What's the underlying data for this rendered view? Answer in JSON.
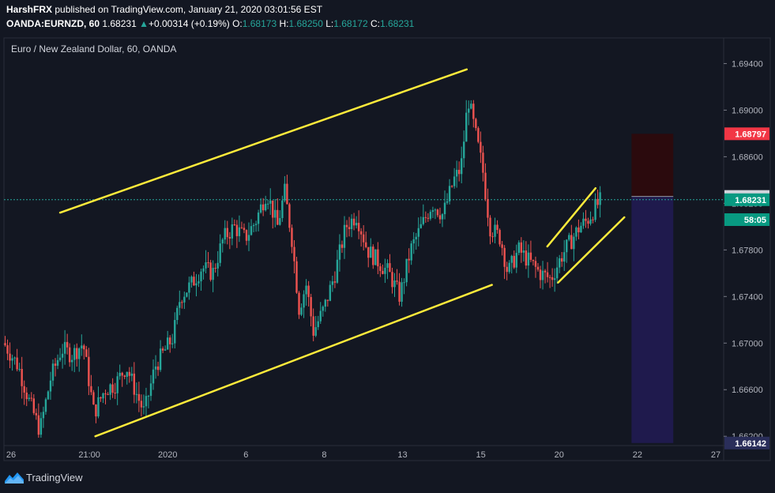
{
  "header": {
    "author": "HarshFRX",
    "published_text": " published on TradingView.com, January 21, 2020 03:01:56 EST",
    "symbol": "OANDA:EURNZD, 60",
    "last": "1.68231",
    "change_arrow": "▲",
    "change": "+0.00314 (+0.19%)",
    "o_label": "O:",
    "o_value": "1.68173",
    "h_label": "H:",
    "h_value": "1.68250",
    "l_label": "L:",
    "l_value": "1.68172",
    "c_label": "C:",
    "c_value": "1.68231"
  },
  "chart_data": {
    "type": "candlestick",
    "title": "Euro / New Zealand Dollar, 60, OANDA",
    "ylim": [
      1.6612,
      1.6962
    ],
    "y_ticks": [
      "1.69400",
      "1.69000",
      "1.68600",
      "1.68200",
      "1.67800",
      "1.67400",
      "1.67000",
      "1.66600",
      "1.66200"
    ],
    "x_ticks": [
      "26",
      "21:00",
      "2020",
      "6",
      "8",
      "13",
      "15",
      "20",
      "22",
      "27"
    ],
    "current_price_line": 1.68231,
    "price_labels": [
      {
        "text": "1.68797",
        "value": 1.68797,
        "color": "#f23645"
      },
      {
        "text": "1.68259",
        "value": 1.68259,
        "color": "#d1d4dc"
      },
      {
        "text": "1.68231",
        "value": 1.68231,
        "color": "#089981"
      },
      {
        "text": "58:05",
        "value": 1.6806,
        "color": "#089981"
      },
      {
        "text": "1.66142",
        "value": 1.66142,
        "color": "#2a2e5a"
      }
    ],
    "colors": {
      "up": "#26a69a",
      "down": "#ef5350",
      "trendline": "#ffeb3b",
      "stop_zone": "#2b0a0d",
      "target_zone": "#1f1a4d"
    },
    "path": [
      {
        "x": 0.0,
        "y": 1.67
      },
      {
        "x": 0.02,
        "y": 1.668
      },
      {
        "x": 0.035,
        "y": 1.665
      },
      {
        "x": 0.05,
        "y": 1.6625
      },
      {
        "x": 0.065,
        "y": 1.667
      },
      {
        "x": 0.08,
        "y": 1.6695
      },
      {
        "x": 0.095,
        "y": 1.669
      },
      {
        "x": 0.11,
        "y": 1.67
      },
      {
        "x": 0.125,
        "y": 1.664
      },
      {
        "x": 0.14,
        "y": 1.666
      },
      {
        "x": 0.155,
        "y": 1.6665
      },
      {
        "x": 0.17,
        "y": 1.668
      },
      {
        "x": 0.185,
        "y": 1.6655
      },
      {
        "x": 0.195,
        "y": 1.664
      },
      {
        "x": 0.21,
        "y": 1.668
      },
      {
        "x": 0.22,
        "y": 1.669
      },
      {
        "x": 0.235,
        "y": 1.6705
      },
      {
        "x": 0.245,
        "y": 1.674
      },
      {
        "x": 0.26,
        "y": 1.675
      },
      {
        "x": 0.275,
        "y": 1.6765
      },
      {
        "x": 0.29,
        "y": 1.676
      },
      {
        "x": 0.305,
        "y": 1.679
      },
      {
        "x": 0.32,
        "y": 1.68
      },
      {
        "x": 0.335,
        "y": 1.679
      },
      {
        "x": 0.35,
        "y": 1.6805
      },
      {
        "x": 0.365,
        "y": 1.683
      },
      {
        "x": 0.38,
        "y": 1.68
      },
      {
        "x": 0.39,
        "y": 1.683
      },
      {
        "x": 0.4,
        "y": 1.679
      },
      {
        "x": 0.41,
        "y": 1.673
      },
      {
        "x": 0.42,
        "y": 1.675
      },
      {
        "x": 0.43,
        "y": 1.671
      },
      {
        "x": 0.445,
        "y": 1.673
      },
      {
        "x": 0.46,
        "y": 1.676
      },
      {
        "x": 0.475,
        "y": 1.68
      },
      {
        "x": 0.49,
        "y": 1.681
      },
      {
        "x": 0.505,
        "y": 1.678
      },
      {
        "x": 0.52,
        "y": 1.677
      },
      {
        "x": 0.535,
        "y": 1.676
      },
      {
        "x": 0.55,
        "y": 1.674
      },
      {
        "x": 0.565,
        "y": 1.678
      },
      {
        "x": 0.58,
        "y": 1.68
      },
      {
        "x": 0.595,
        "y": 1.682
      },
      {
        "x": 0.61,
        "y": 1.681
      },
      {
        "x": 0.625,
        "y": 1.684
      },
      {
        "x": 0.635,
        "y": 1.685
      },
      {
        "x": 0.645,
        "y": 1.691
      },
      {
        "x": 0.655,
        "y": 1.688
      },
      {
        "x": 0.665,
        "y": 1.685
      },
      {
        "x": 0.675,
        "y": 1.68
      },
      {
        "x": 0.69,
        "y": 1.679
      },
      {
        "x": 0.7,
        "y": 1.676
      },
      {
        "x": 0.715,
        "y": 1.678
      },
      {
        "x": 0.73,
        "y": 1.677
      },
      {
        "x": 0.745,
        "y": 1.676
      },
      {
        "x": 0.76,
        "y": 1.6755
      },
      {
        "x": 0.775,
        "y": 1.6775
      },
      {
        "x": 0.79,
        "y": 1.679
      },
      {
        "x": 0.8,
        "y": 1.68
      },
      {
        "x": 0.81,
        "y": 1.6805
      },
      {
        "x": 0.82,
        "y": 1.6815
      },
      {
        "x": 0.83,
        "y": 1.6823
      }
    ],
    "trendlines": [
      {
        "name": "channel-upper",
        "x1": 0.078,
        "y1": 1.6812,
        "x2": 0.643,
        "y2": 1.6935
      },
      {
        "name": "channel-lower",
        "x1": 0.127,
        "y1": 1.662,
        "x2": 0.678,
        "y2": 1.675
      },
      {
        "name": "wedge-upper",
        "x1": 0.755,
        "y1": 1.6783,
        "x2": 0.822,
        "y2": 1.6833
      },
      {
        "name": "wedge-lower",
        "x1": 0.77,
        "y1": 1.6752,
        "x2": 0.862,
        "y2": 1.6808
      }
    ],
    "position_tool": {
      "x1": 0.872,
      "x2": 0.93,
      "stop": 1.68797,
      "entry": 1.68259,
      "target": 1.66142
    }
  },
  "footer": {
    "brand": "TradingView"
  }
}
